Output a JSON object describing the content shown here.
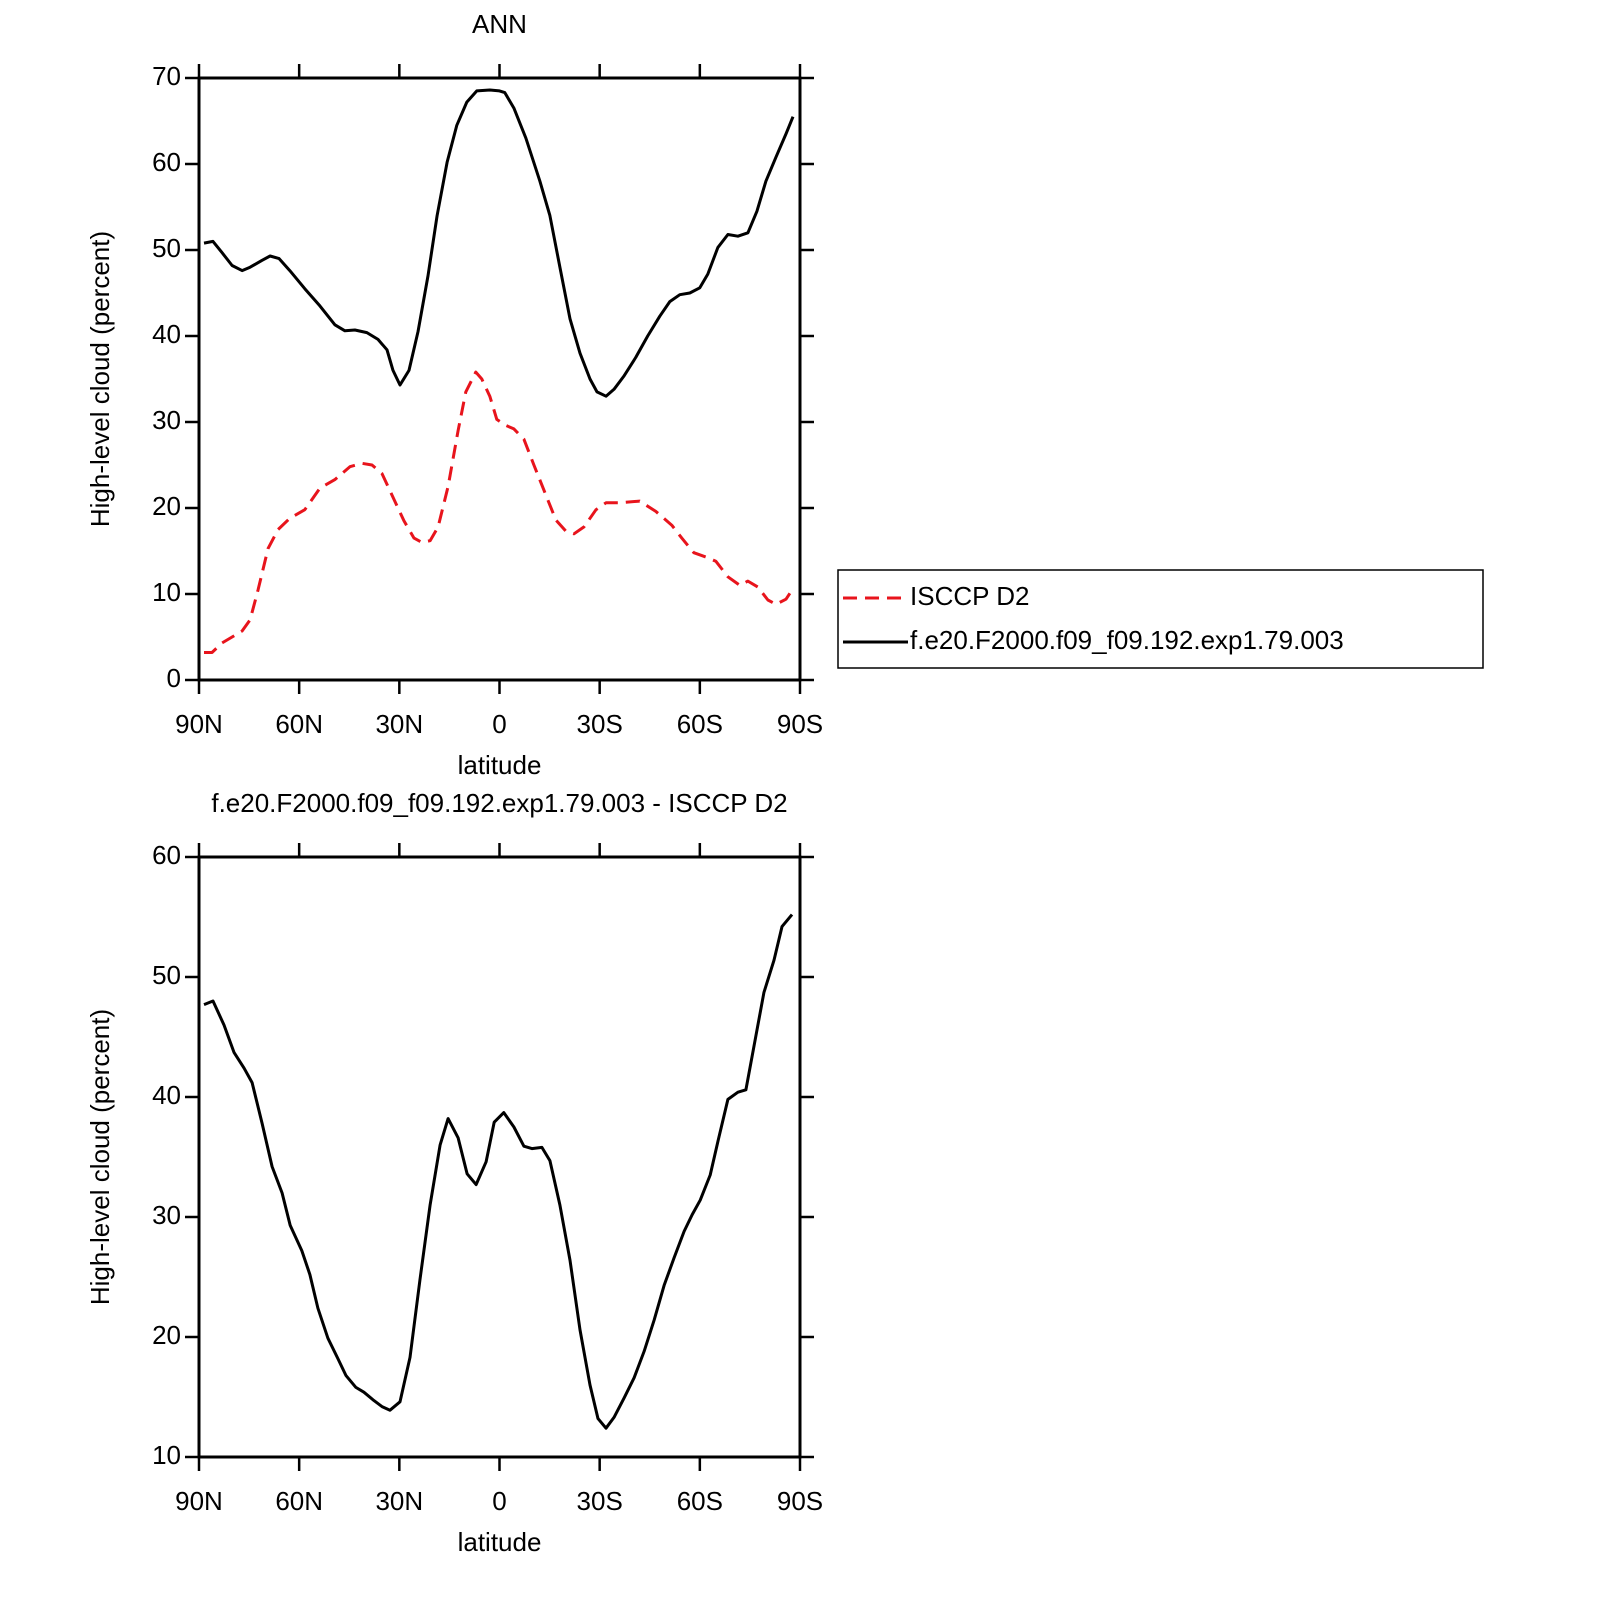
{
  "chart_data": [
    {
      "type": "line",
      "title": "ANN",
      "xlabel": "latitude",
      "ylabel": "High-level cloud (percent)",
      "xlim": [
        90,
        -90
      ],
      "xticks": [
        {
          "value": 90,
          "label": "90N"
        },
        {
          "value": 60,
          "label": "60N"
        },
        {
          "value": 30,
          "label": "30N"
        },
        0,
        {
          "value": -30,
          "label": "30S"
        },
        {
          "value": -60,
          "label": "60S"
        },
        {
          "value": -90,
          "label": "90S"
        }
      ],
      "ylim": [
        0,
        70
      ],
      "yticks": [
        0,
        10,
        20,
        30,
        40,
        50,
        60,
        70
      ],
      "legend": "right",
      "series": [
        {
          "name": "ISCCP D2",
          "color": "#e8141c",
          "dashed": true,
          "x": [
            88.5,
            86.1,
            83.1,
            80.1,
            77.1,
            74.7,
            72.3,
            69.3,
            66.3,
            62.8,
            58.3,
            53.8,
            49.3,
            44.8,
            41.2,
            38.2,
            35.2,
            32.2,
            28.6,
            25.6,
            23.2,
            20.8,
            18.4,
            15.4,
            12.4,
            10.1,
            7.1,
            5.3,
            2.9,
            0.8,
            -1.9,
            -4.3,
            -7.3,
            -10.3,
            -13.9,
            -16.9,
            -19.9,
            -22.3,
            -25.3,
            -28.9,
            -31.9,
            -36.0,
            -42.0,
            -46.8,
            -51.6,
            -54.6,
            -58.2,
            -61.8,
            -64.8,
            -68.4,
            -72.0,
            -74.4,
            -77.4,
            -80.4,
            -82.8,
            -85.8,
            -88.2
          ],
          "values": [
            3.2,
            3.2,
            4.3,
            5.0,
            5.7,
            7.0,
            10.5,
            15.3,
            17.5,
            18.8,
            19.8,
            22.3,
            23.3,
            24.8,
            25.2,
            25.0,
            24.0,
            21.5,
            18.5,
            16.5,
            16.0,
            16.2,
            17.8,
            22.5,
            29.0,
            33.5,
            35.8,
            35.0,
            33.0,
            30.3,
            29.6,
            29.2,
            28.0,
            25.0,
            21.5,
            18.6,
            17.3,
            17.0,
            17.8,
            19.8,
            20.6,
            20.6,
            20.8,
            19.6,
            18.0,
            16.5,
            14.8,
            14.3,
            13.8,
            12.0,
            11.0,
            11.5,
            10.8,
            9.3,
            8.8,
            9.4,
            10.8
          ]
        },
        {
          "name": "f.e20.F2000.f09_f09.192.exp1.79.003",
          "color": "#000000",
          "dashed": false,
          "x": [
            88.5,
            85.8,
            83.1,
            80.1,
            77.1,
            74.7,
            71.1,
            68.7,
            66.0,
            62.8,
            58.3,
            53.8,
            49.3,
            46.3,
            43.3,
            39.7,
            36.4,
            33.7,
            31.9,
            29.8,
            27.1,
            24.4,
            21.4,
            18.7,
            15.7,
            12.8,
            9.8,
            6.8,
            2.9,
            0,
            -1.6,
            -4.3,
            -7.9,
            -12.1,
            -15.1,
            -18.1,
            -21.1,
            -24.1,
            -27.1,
            -29.2,
            -31.9,
            -34.3,
            -37.2,
            -40.8,
            -44.4,
            -48.0,
            -51.0,
            -54.0,
            -57.0,
            -60.0,
            -62.4,
            -65.4,
            -68.4,
            -71.4,
            -74.4,
            -77.1,
            -79.8,
            -82.8,
            -85.8,
            -87.9
          ],
          "values": [
            50.8,
            51.0,
            49.7,
            48.2,
            47.6,
            48.0,
            48.8,
            49.3,
            49.0,
            47.6,
            45.5,
            43.5,
            41.3,
            40.6,
            40.7,
            40.4,
            39.6,
            38.4,
            36.0,
            34.3,
            36.0,
            40.5,
            47.0,
            54.0,
            60.2,
            64.5,
            67.2,
            68.5,
            68.6,
            68.5,
            68.3,
            66.5,
            63.0,
            58.0,
            54.0,
            48.0,
            42.0,
            38.0,
            35.0,
            33.5,
            33.0,
            33.8,
            35.3,
            37.5,
            40.0,
            42.3,
            44.0,
            44.8,
            45.0,
            45.6,
            47.2,
            50.3,
            51.8,
            51.6,
            52.0,
            54.5,
            58.0,
            60.8,
            63.5,
            65.5
          ]
        }
      ]
    },
    {
      "type": "line",
      "title": "f.e20.F2000.f09_f09.192.exp1.79.003 - ISCCP D2",
      "xlabel": "latitude",
      "ylabel": "High-level cloud (percent)",
      "xlim": [
        90,
        -90
      ],
      "xticks": [
        {
          "value": 90,
          "label": "90N"
        },
        {
          "value": 60,
          "label": "60N"
        },
        {
          "value": 30,
          "label": "30N"
        },
        0,
        {
          "value": -30,
          "label": "30S"
        },
        {
          "value": -60,
          "label": "60S"
        },
        {
          "value": -90,
          "label": "90S"
        }
      ],
      "ylim": [
        10,
        60
      ],
      "yticks": [
        10,
        20,
        30,
        40,
        50,
        60
      ],
      "series": [
        {
          "color": "#000000",
          "dashed": false,
          "x": [
            88.5,
            85.8,
            82.5,
            79.5,
            76.5,
            74.1,
            71.1,
            68.1,
            65.1,
            62.7,
            59.2,
            56.8,
            54.4,
            51.4,
            48.4,
            46.0,
            43.0,
            40.6,
            37.6,
            35.2,
            32.8,
            29.8,
            26.8,
            23.8,
            20.8,
            17.8,
            15.4,
            12.4,
            9.7,
            7.0,
            4.0,
            1.6,
            -1.3,
            -4.3,
            -7.3,
            -9.7,
            -12.7,
            -15.1,
            -18.1,
            -21.1,
            -24.1,
            -27.1,
            -29.5,
            -31.9,
            -34.3,
            -37.3,
            -40.3,
            -43.3,
            -46.3,
            -49.3,
            -52.3,
            -55.3,
            -57.7,
            -60.1,
            -63.1,
            -65.5,
            -68.4,
            -71.4,
            -73.8,
            -76.2,
            -79.2,
            -82.2,
            -84.6,
            -87.6
          ],
          "values": [
            47.7,
            48.0,
            46.0,
            43.7,
            42.4,
            41.2,
            37.8,
            34.2,
            32.0,
            29.3,
            27.2,
            25.2,
            22.4,
            19.9,
            18.2,
            16.8,
            15.8,
            15.4,
            14.7,
            14.2,
            13.9,
            14.6,
            18.3,
            24.8,
            31.0,
            36.0,
            38.2,
            36.6,
            33.6,
            32.7,
            34.6,
            37.9,
            38.7,
            37.5,
            35.9,
            35.7,
            35.8,
            34.7,
            31.0,
            26.4,
            20.6,
            16.0,
            13.2,
            12.4,
            13.3,
            14.9,
            16.6,
            18.8,
            21.4,
            24.3,
            26.6,
            28.8,
            30.2,
            31.4,
            33.5,
            36.4,
            39.8,
            40.4,
            40.6,
            44.2,
            48.7,
            51.4,
            54.2,
            55.2
          ]
        }
      ]
    }
  ]
}
